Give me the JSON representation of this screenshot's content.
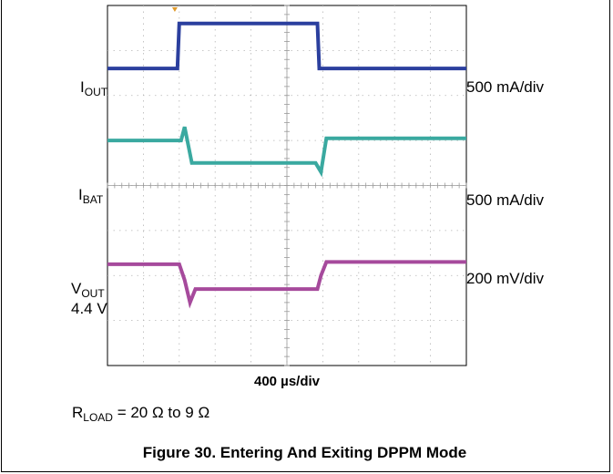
{
  "chart_data": {
    "type": "line",
    "title": "",
    "x_division": "400 µs/div",
    "grid": true,
    "grid_divisions": {
      "x": 10,
      "y": 8
    },
    "series": [
      {
        "name": "I_OUT",
        "label_main": "I",
        "label_sub": "OUT",
        "label_extra": "",
        "scale": "500 mA/div",
        "color": "#2b3f9e",
        "points": [
          [
            0,
            2.6
          ],
          [
            1.95,
            2.6
          ],
          [
            2.0,
            3.6
          ],
          [
            5.85,
            3.6
          ],
          [
            5.9,
            2.6
          ],
          [
            10,
            2.6
          ]
        ]
      },
      {
        "name": "I_BAT",
        "label_main": "I",
        "label_sub": "BAT",
        "label_extra": "",
        "scale": "500 mA/div",
        "color": "#3aa9a0",
        "points": [
          [
            0,
            1.0
          ],
          [
            2.05,
            1.0
          ],
          [
            2.15,
            1.3
          ],
          [
            2.35,
            0.5
          ],
          [
            5.8,
            0.5
          ],
          [
            5.95,
            0.3
          ],
          [
            6.1,
            1.05
          ],
          [
            10,
            1.05
          ]
        ]
      },
      {
        "name": "V_OUT",
        "label_main": "V",
        "label_sub": "OUT",
        "label_extra": "4.4 V",
        "scale": "200 mV/div",
        "color": "#a64a9c",
        "points": [
          [
            0,
            -1.75
          ],
          [
            2.0,
            -1.75
          ],
          [
            2.15,
            -2.1
          ],
          [
            2.3,
            -2.6
          ],
          [
            2.45,
            -2.3
          ],
          [
            5.85,
            -2.3
          ],
          [
            5.95,
            -2.0
          ],
          [
            6.1,
            -1.7
          ],
          [
            10,
            -1.7
          ]
        ]
      }
    ]
  },
  "labels": {
    "iout_main": "I",
    "iout_sub": "OUT",
    "iout_scale": "500 mA/div",
    "ibat_main": "I",
    "ibat_sub": "BAT",
    "ibat_scale": "500 mA/div",
    "vout_main": "V",
    "vout_sub": "OUT",
    "vout_level": "4.4 V",
    "vout_scale": "200 mV/div",
    "timebase": "400 µs/div",
    "rload_main": "R",
    "rload_sub": "LOAD",
    "rload_rest": " = 20 Ω to 9 Ω",
    "caption": "Figure 30. Entering And Exiting DPPM Mode"
  }
}
